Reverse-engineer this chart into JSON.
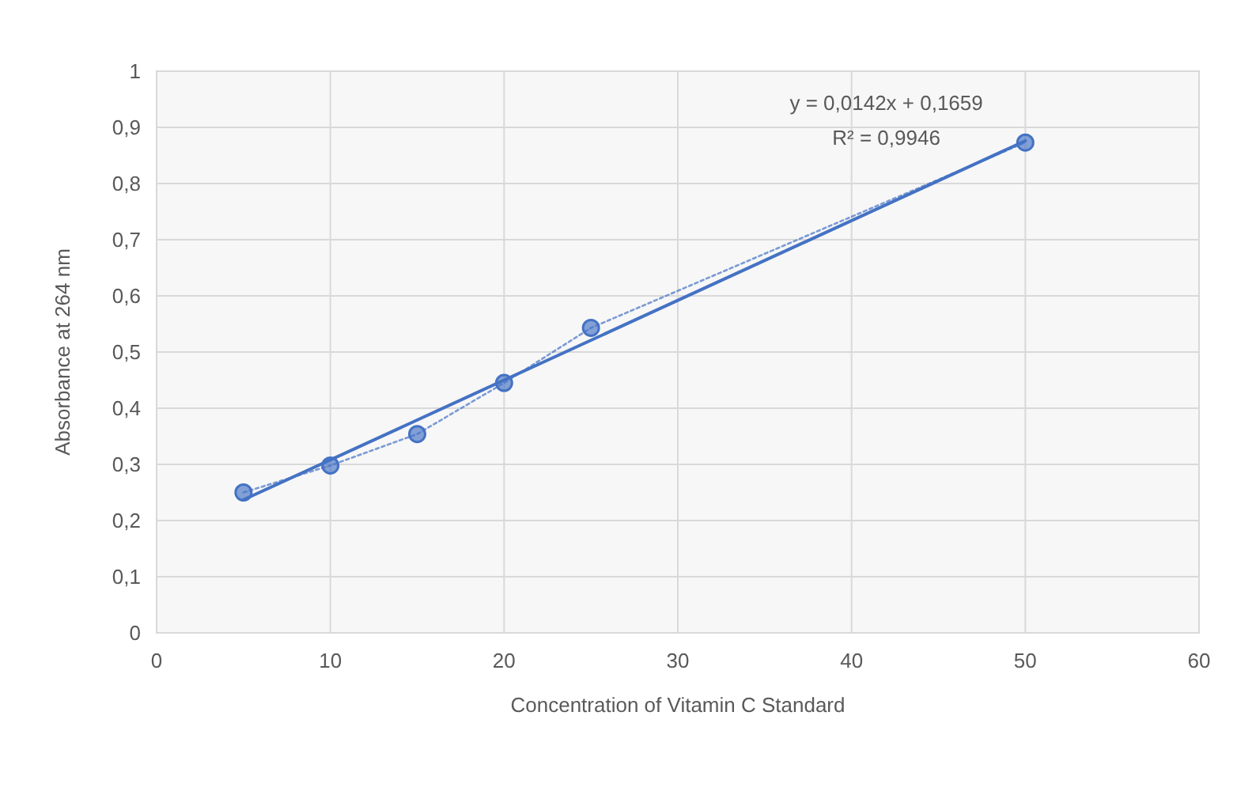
{
  "chart_data": {
    "type": "line",
    "xlabel": "Concentration of Vitamin C Standard",
    "ylabel": "Absorbance at 264 nm",
    "xlim": [
      0,
      60
    ],
    "xticks": [
      0,
      10,
      20,
      30,
      40,
      50,
      60
    ],
    "ylim": [
      0,
      1
    ],
    "yticks": [
      0,
      {
        "value": 0.1,
        "label": "0,1"
      },
      {
        "value": 0.2,
        "label": "0,2"
      },
      {
        "value": 0.3,
        "label": "0,3"
      },
      {
        "value": 0.4,
        "label": "0,4"
      },
      {
        "value": 0.5,
        "label": "0,5"
      },
      {
        "value": 0.6,
        "label": "0,6"
      },
      {
        "value": 0.7,
        "label": "0,7"
      },
      {
        "value": 0.8,
        "label": "0,8"
      },
      {
        "value": 0.9,
        "label": "0,9"
      },
      1
    ],
    "grid": true,
    "series": [
      {
        "type": "line",
        "color": "#4472c4",
        "x": [
          5,
          50
        ],
        "values": [
          0.237,
          0.876
        ],
        "marker": "none",
        "line_style": "solid"
      },
      {
        "type": "line",
        "color": "#4472c4",
        "x": [
          5,
          10,
          15,
          20,
          25,
          50
        ],
        "values": [
          0.25,
          0.298,
          0.354,
          0.445,
          0.543,
          0.873
        ],
        "marker": "circle",
        "line_style": "dotted"
      }
    ],
    "annotations": [
      "y = 0,0142x + 0,1659",
      "R² = 0,9946"
    ]
  }
}
